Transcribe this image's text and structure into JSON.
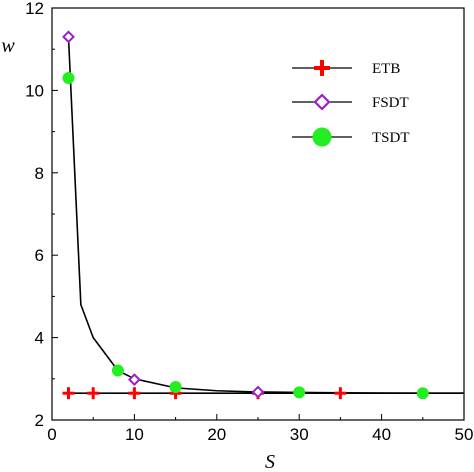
{
  "chart_data": {
    "type": "line",
    "xlabel": "S",
    "ylabel": "w",
    "xlim": [
      0,
      50
    ],
    "ylim": [
      2,
      12
    ],
    "x_ticks": [
      "0",
      "10",
      "20",
      "30",
      "40",
      "50"
    ],
    "y_ticks": [
      "2",
      "4",
      "6",
      "8",
      "10",
      "12"
    ],
    "grid": false,
    "legend_position": "top-right",
    "curve": {
      "x": [
        2,
        3.5,
        5,
        8,
        10,
        15,
        20,
        25,
        30,
        35,
        40,
        45,
        50
      ],
      "y": [
        11.3,
        4.8,
        4.0,
        3.2,
        3.0,
        2.78,
        2.71,
        2.68,
        2.67,
        2.66,
        2.655,
        2.65,
        2.65
      ]
    },
    "series": [
      {
        "name": "ETB",
        "marker": "plus",
        "color": "#ff0000",
        "x": [
          2,
          5,
          10,
          15,
          25,
          35
        ],
        "y": [
          2.65,
          2.65,
          2.65,
          2.65,
          2.65,
          2.65
        ],
        "line_x": [
          2,
          50
        ],
        "line_y": [
          2.65,
          2.65
        ]
      },
      {
        "name": "FSDT",
        "marker": "diamond",
        "color": "#9b1fc8",
        "x": [
          2,
          10,
          25
        ],
        "y": [
          11.3,
          2.98,
          2.68
        ]
      },
      {
        "name": "TSDT",
        "marker": "circle",
        "color": "#22ee22",
        "x": [
          2,
          8,
          15,
          30,
          45
        ],
        "y": [
          10.3,
          3.2,
          2.8,
          2.67,
          2.65
        ]
      }
    ]
  }
}
